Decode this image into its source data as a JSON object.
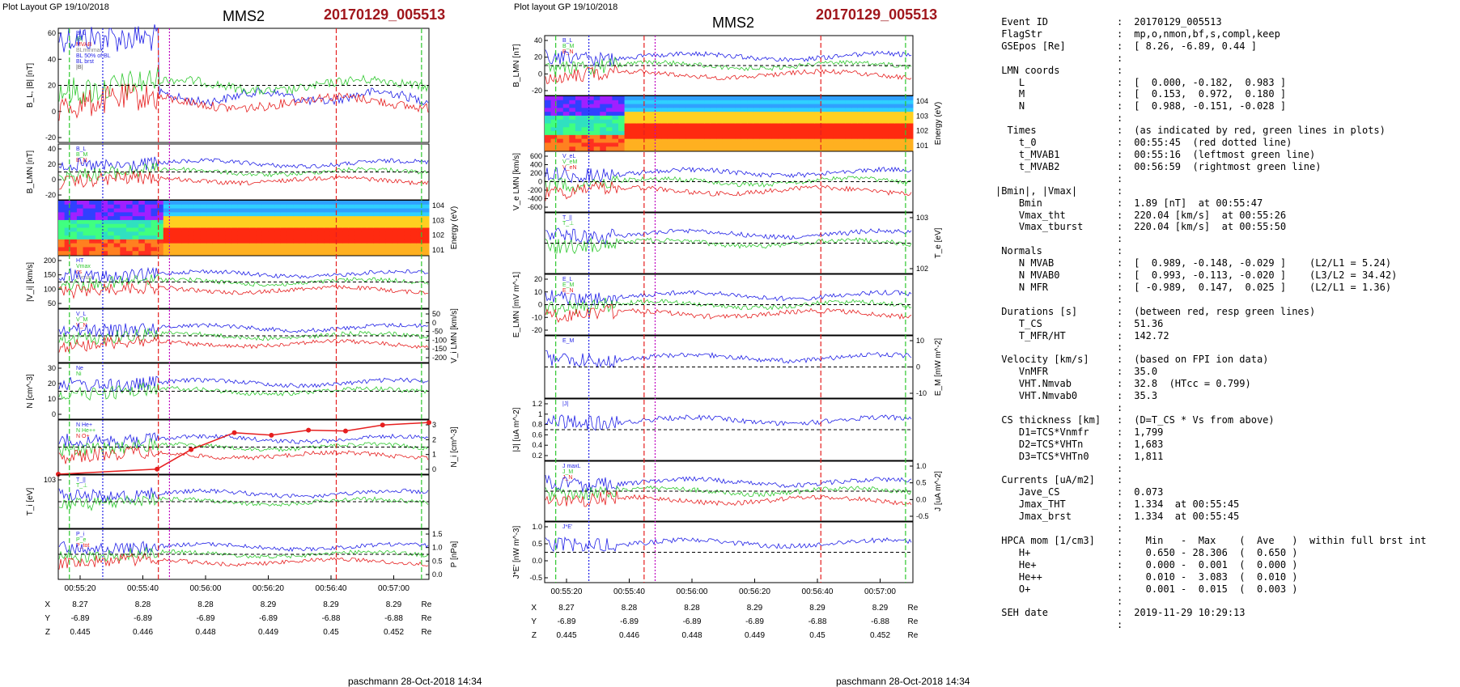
{
  "left_figure": {
    "layout_label": "Plot Layout GP 19/10/2018",
    "spacecraft": "MMS2",
    "event": "20170129_005513",
    "footer": "paschmann 28-Oct-2018 14:34",
    "time_ticks": [
      "00:55:20",
      "00:55:40",
      "00:56:00",
      "00:56:20",
      "00:56:40",
      "00:57:00"
    ],
    "coords": {
      "X": {
        "label": "X",
        "values": [
          "8.27",
          "8.28",
          "8.28",
          "8.29",
          "8.29",
          "8.29"
        ],
        "unit": "Re"
      },
      "Y": {
        "label": "Y",
        "values": [
          "-6.89",
          "-6.89",
          "-6.89",
          "-6.89",
          "-6.88",
          "-6.88"
        ],
        "unit": "Re"
      },
      "Z": {
        "label": "Z",
        "values": [
          "0.445",
          "0.446",
          "0.448",
          "0.449",
          "0.45",
          "0.452"
        ],
        "unit": "Re"
      }
    }
  },
  "right_figure": {
    "layout_label": "Plot layout GP 19/10/2018",
    "spacecraft": "MMS2",
    "event": "20170129_005513",
    "footer": "paschmann 28-Oct-2018 14:34",
    "time_ticks": [
      "00:55:20",
      "00:55:40",
      "00:56:00",
      "00:56:20",
      "00:56:40",
      "00:57:00"
    ],
    "coords": {
      "X": {
        "label": "X",
        "values": [
          "8.27",
          "8.28",
          "8.28",
          "8.29",
          "8.29",
          "8.29"
        ],
        "unit": "Re"
      },
      "Y": {
        "label": "Y",
        "values": [
          "-6.89",
          "-6.89",
          "-6.89",
          "-6.89",
          "-6.88",
          "-6.88"
        ],
        "unit": "Re"
      },
      "Z": {
        "label": "Z",
        "values": [
          "0.445",
          "0.446",
          "0.448",
          "0.449",
          "0.45",
          "0.452"
        ],
        "unit": "Re"
      }
    }
  },
  "chart_data": [
    {
      "type": "line",
      "panel": "L1",
      "ylabel": "B_L, |B| [nT]",
      "yticks": [
        "60",
        "40",
        "20",
        "0",
        "-20"
      ],
      "legend": [
        "B_L",
        "|B|",
        "MVAB",
        "BLminmax",
        "BL 50% of BL",
        "BL brst",
        "|B|"
      ]
    },
    {
      "type": "line",
      "panel": "L2",
      "ylabel": "B_LMN [nT]",
      "yticks": [
        "40",
        "20",
        "0",
        "-20"
      ],
      "legend": [
        "B_L",
        "B_M",
        "B_N"
      ]
    },
    {
      "type": "heatmap",
      "panel": "L3",
      "ylabel": "Energy (eV)",
      "yticks": [
        "10^4",
        "10^3",
        "10^2",
        "10^1"
      ]
    },
    {
      "type": "line",
      "panel": "L4",
      "ylabel": "|V_i| [km/s]",
      "yticks": [
        "200",
        "150",
        "100",
        "50"
      ],
      "legend": [
        "HT",
        "Vmax",
        "cs",
        "dvmax"
      ]
    },
    {
      "type": "line",
      "panel": "L5",
      "ylabel": "V_i LMN [km/s]",
      "yticks": [
        "50",
        "0",
        "-50",
        "-100",
        "-150",
        "-200"
      ],
      "legend": [
        "V_L",
        "V_M",
        "V_N"
      ]
    },
    {
      "type": "line",
      "panel": "L6",
      "ylabel": "N [cm^-3]",
      "yticks": [
        "30",
        "20",
        "10",
        "0"
      ],
      "legend": [
        "Ne",
        "Ni"
      ]
    },
    {
      "type": "line",
      "panel": "L7",
      "ylabel": "N_i [cm^-3]",
      "yticks": [
        "3",
        "2",
        "1",
        "0"
      ],
      "legend": [
        "N He+",
        "N He++",
        "N O+"
      ],
      "series": [
        {
          "name": "N He++",
          "x": [
            "00:55:05",
            "00:55:37",
            "00:55:48",
            "00:56:02",
            "00:56:14",
            "00:56:26",
            "00:56:38",
            "00:56:50",
            "00:57:05"
          ],
          "values": [
            0,
            0.3,
            1.45,
            2.45,
            2.3,
            2.6,
            2.55,
            2.9,
            3.05
          ]
        }
      ]
    },
    {
      "type": "line",
      "panel": "L8",
      "ylabel": "T_i [eV]",
      "yticks": [
        "10^3"
      ],
      "legend": [
        "T_||",
        "T_⊥"
      ]
    },
    {
      "type": "line",
      "panel": "L9",
      "ylabel": "P [nPa]",
      "yticks": [
        "1.5",
        "1.0",
        "0.5",
        "0.0"
      ],
      "legend": [
        "P_i",
        "P_e",
        "P_tot"
      ]
    },
    {
      "type": "line",
      "panel": "R1",
      "ylabel": "B_LMN [nT]",
      "yticks": [
        "40",
        "20",
        "0",
        "-20"
      ],
      "legend": [
        "B_L",
        "B_M",
        "B_N"
      ]
    },
    {
      "type": "heatmap",
      "panel": "R2",
      "ylabel": "Energy (eV)",
      "yticks": [
        "10^4",
        "10^3",
        "10^2",
        "10^1"
      ]
    },
    {
      "type": "line",
      "panel": "R3",
      "ylabel": "V_e LMN [km/s]",
      "yticks": [
        "600",
        "400",
        "200",
        "0",
        "-200",
        "-400",
        "-600"
      ],
      "legend": [
        "V_eL",
        "V_eM",
        "V_eN"
      ]
    },
    {
      "type": "line",
      "panel": "R4",
      "ylabel": "T_e [eV]",
      "yticks": [
        "10^3",
        "10^2"
      ],
      "legend": [
        "T_||",
        "T_⊥"
      ]
    },
    {
      "type": "line",
      "panel": "R5",
      "ylabel": "E_LMN [mV m^-1]",
      "yticks": [
        "20",
        "10",
        "0",
        "-10",
        "-20"
      ],
      "legend": [
        "E_L",
        "E_M",
        "E_N"
      ]
    },
    {
      "type": "line",
      "panel": "R6",
      "ylabel": "E_M [mW m^-2]",
      "yticks": [
        "10",
        "0",
        "-10"
      ],
      "legend": [
        "E_M"
      ]
    },
    {
      "type": "line",
      "panel": "R7",
      "ylabel": "|J| [uA m^-2]",
      "yticks": [
        "1.2",
        "1",
        "0.8",
        "0.6",
        "0.4",
        "0.2"
      ],
      "legend": [
        "|J|"
      ]
    },
    {
      "type": "line",
      "panel": "R8",
      "ylabel": "J [uA m^-2]",
      "yticks": [
        "1.0",
        "0.5",
        "0.0",
        "-0.5"
      ],
      "legend": [
        "J maxL",
        "J_M",
        "J_N"
      ]
    },
    {
      "type": "line",
      "panel": "R9",
      "ylabel": "J*E' [nW m^-3]",
      "yticks": [
        "1.0",
        "0.5",
        "0.0",
        "-0.5"
      ],
      "legend": [
        "J*E'"
      ]
    }
  ],
  "info": {
    "rows": [
      {
        "k": "Event ID",
        "v": "20170129_005513",
        "indent": 0
      },
      {
        "k": "FlagStr",
        "v": "mp,o,nmon,bf,s,compl,keep",
        "indent": 0
      },
      {
        "k": "GSEpos [Re]",
        "v": "[ 8.26, -6.89, 0.44 ]",
        "indent": 0
      },
      {
        "k": "",
        "v": "",
        "indent": 0
      },
      {
        "k": "LMN coords",
        "v": "",
        "indent": 0
      },
      {
        "k": "L",
        "v": "[  0.000, -0.182,  0.983 ]",
        "indent": 3
      },
      {
        "k": "M",
        "v": "[  0.153,  0.972,  0.180 ]",
        "indent": 3
      },
      {
        "k": "N",
        "v": "[  0.988, -0.151, -0.028 ]",
        "indent": 3
      },
      {
        "k": "",
        "v": "",
        "indent": 0
      },
      {
        "k": "Times",
        "v": "(as indicated by red, green lines in plots)",
        "indent": 1
      },
      {
        "k": "t_0",
        "v": "00:55:45  (red dotted line)",
        "indent": 3
      },
      {
        "k": "t_MVAB1",
        "v": "00:55:16  (leftmost green line)",
        "indent": 3
      },
      {
        "k": "t_MVAB2",
        "v": "00:56:59  (rightmost green line)",
        "indent": 3
      },
      {
        "k": "",
        "v": "",
        "indent": 0
      },
      {
        "k": "|Bmin|, |Vmax|",
        "v": "",
        "indent": -1
      },
      {
        "k": "Bmin",
        "v": "1.89 [nT]  at 00:55:47",
        "indent": 3
      },
      {
        "k": "Vmax_tht",
        "v": "220.04 [km/s]  at 00:55:26",
        "indent": 3
      },
      {
        "k": "Vmax_tburst",
        "v": "220.04 [km/s]  at 00:55:50",
        "indent": 3
      },
      {
        "k": "",
        "v": "",
        "indent": 0
      },
      {
        "k": "Normals",
        "v": "",
        "indent": 0
      },
      {
        "k": "N MVAB",
        "v": "[  0.989, -0.148, -0.029 ]    (L2/L1 = 5.24)",
        "indent": 3
      },
      {
        "k": "N MVAB0",
        "v": "[  0.993, -0.113, -0.020 ]    (L3/L2 = 34.42)",
        "indent": 3
      },
      {
        "k": "N MFR",
        "v": "[ -0.989,  0.147,  0.025 ]    (L2/L1 = 1.36)",
        "indent": 3
      },
      {
        "k": "",
        "v": "",
        "indent": 0
      },
      {
        "k": "Durations [s]",
        "v": "(between red, resp green lines)",
        "indent": 0
      },
      {
        "k": "T_CS",
        "v": "51.36",
        "indent": 3
      },
      {
        "k": "T_MFR/HT",
        "v": "142.72",
        "indent": 3
      },
      {
        "k": "",
        "v": "",
        "indent": 0
      },
      {
        "k": "Velocity [km/s]",
        "v": "(based on FPI ion data)",
        "indent": 0
      },
      {
        "k": "VnMFR",
        "v": "35.0",
        "indent": 3
      },
      {
        "k": "VHT.Nmvab",
        "v": "32.8  (HTcc = 0.799)",
        "indent": 3
      },
      {
        "k": "VHT.Nmvab0",
        "v": "35.3",
        "indent": 3
      },
      {
        "k": "",
        "v": "",
        "indent": 0
      },
      {
        "k": "CS thickness [km]",
        "v": "(D=T_CS * Vs from above)",
        "indent": 0
      },
      {
        "k": "D1=TCS*Vnmfr",
        "v": "1,799",
        "indent": 3
      },
      {
        "k": "D2=TCS*VHTn",
        "v": "1,683",
        "indent": 3
      },
      {
        "k": "D3=TCS*VHTn0",
        "v": "1,811",
        "indent": 3
      },
      {
        "k": "",
        "v": "",
        "indent": 0
      },
      {
        "k": "Currents [uA/m2]",
        "v": "",
        "indent": 0
      },
      {
        "k": "Jave_CS",
        "v": "0.073",
        "indent": 3
      },
      {
        "k": "Jmax_THT",
        "v": "1.334  at 00:55:45",
        "indent": 3
      },
      {
        "k": "Jmax_brst",
        "v": "1.334  at 00:55:45",
        "indent": 3
      },
      {
        "k": "",
        "v": "",
        "indent": 0
      },
      {
        "k": "HPCA mom [1/cm3]",
        "v": "  Min   -  Max    (  Ave   )  within full brst int",
        "indent": 0
      },
      {
        "k": "H+",
        "v": "  0.650 - 28.306  (  0.650 )",
        "indent": 3
      },
      {
        "k": "He+",
        "v": "  0.000 -  0.001  (  0.000 )",
        "indent": 3
      },
      {
        "k": "He++",
        "v": "  0.010 -  3.083  (  0.010 )",
        "indent": 3
      },
      {
        "k": "O+",
        "v": "  0.001 -  0.015  (  0.003 )",
        "indent": 3
      },
      {
        "k": "",
        "v": "",
        "indent": 0
      },
      {
        "k": "SEH date",
        "v": "2019-11-29 10:29:13",
        "indent": 0
      },
      {
        "k": "",
        "v": "",
        "indent": 0
      }
    ]
  },
  "colors": {
    "event_red": "#a0161c",
    "blue": "#1f1fe6",
    "green": "#2ec82e",
    "red": "#e61f1f",
    "black": "#000000"
  }
}
